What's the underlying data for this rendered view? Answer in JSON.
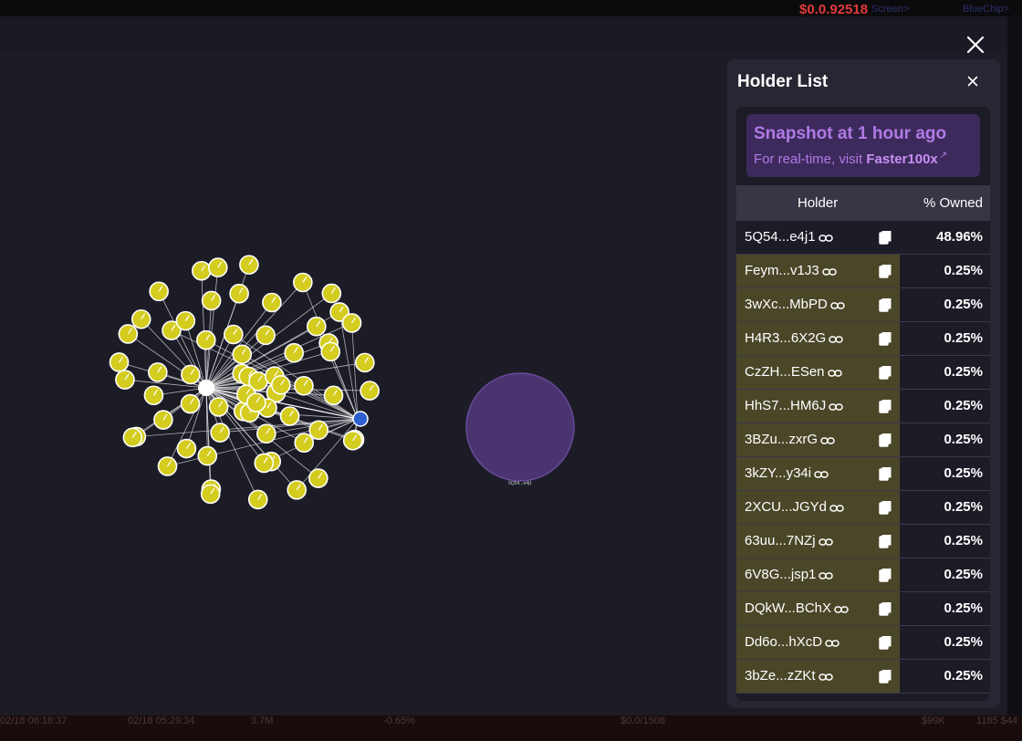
{
  "header": {
    "price": "$0.0.92518",
    "nav": [
      "Screen>",
      "BlueChip>"
    ]
  },
  "modal": {
    "close_label": "×"
  },
  "panel": {
    "title": "Holder List",
    "close_label": "×",
    "snapshot": {
      "title": "Snapshot at 1 hour ago",
      "sub_prefix": "For real-time, visit ",
      "sub_link": "Faster100x"
    },
    "columns": {
      "holder": "Holder",
      "owned": "% Owned"
    },
    "rows": [
      {
        "addr": "5Q54...e4j1",
        "pct": "48.96%",
        "highlight": false
      },
      {
        "addr": "Feym...v1J3",
        "pct": "0.25%",
        "highlight": true
      },
      {
        "addr": "3wXc...MbPD",
        "pct": "0.25%",
        "highlight": true
      },
      {
        "addr": "H4R3...6X2G",
        "pct": "0.25%",
        "highlight": true
      },
      {
        "addr": "CzZH...ESen",
        "pct": "0.25%",
        "highlight": true
      },
      {
        "addr": "HhS7...HM6J",
        "pct": "0.25%",
        "highlight": true
      },
      {
        "addr": "3BZu...zxrG",
        "pct": "0.25%",
        "highlight": true
      },
      {
        "addr": "3kZY...y34i",
        "pct": "0.25%",
        "highlight": true
      },
      {
        "addr": "2XCU...JGYd",
        "pct": "0.25%",
        "highlight": true
      },
      {
        "addr": "63uu...7NZj",
        "pct": "0.25%",
        "highlight": true
      },
      {
        "addr": "6V8G...jsp1",
        "pct": "0.25%",
        "highlight": true
      },
      {
        "addr": "DQkW...BChX",
        "pct": "0.25%",
        "highlight": true
      },
      {
        "addr": "Dd6o...hXcD",
        "pct": "0.25%",
        "highlight": true
      },
      {
        "addr": "3bZe...zZKt",
        "pct": "0.25%",
        "highlight": true
      }
    ]
  },
  "graph": {
    "big_node_label": "5Q54...e4j1",
    "node_color": "#d4cc1e",
    "hub_color": "#2e5fd0",
    "big_node_color": "#4a3470"
  },
  "background_strip": {
    "bottom": [
      "02/18 06:18:37",
      "02/18 05:29:34",
      "3.7M",
      "-0.65%",
      "$0.0/1508",
      "$99K",
      "1185 $44"
    ]
  },
  "colors": {
    "highlight": "#4a4628",
    "accent": "#b07ae6",
    "price": "#e23a3a"
  }
}
